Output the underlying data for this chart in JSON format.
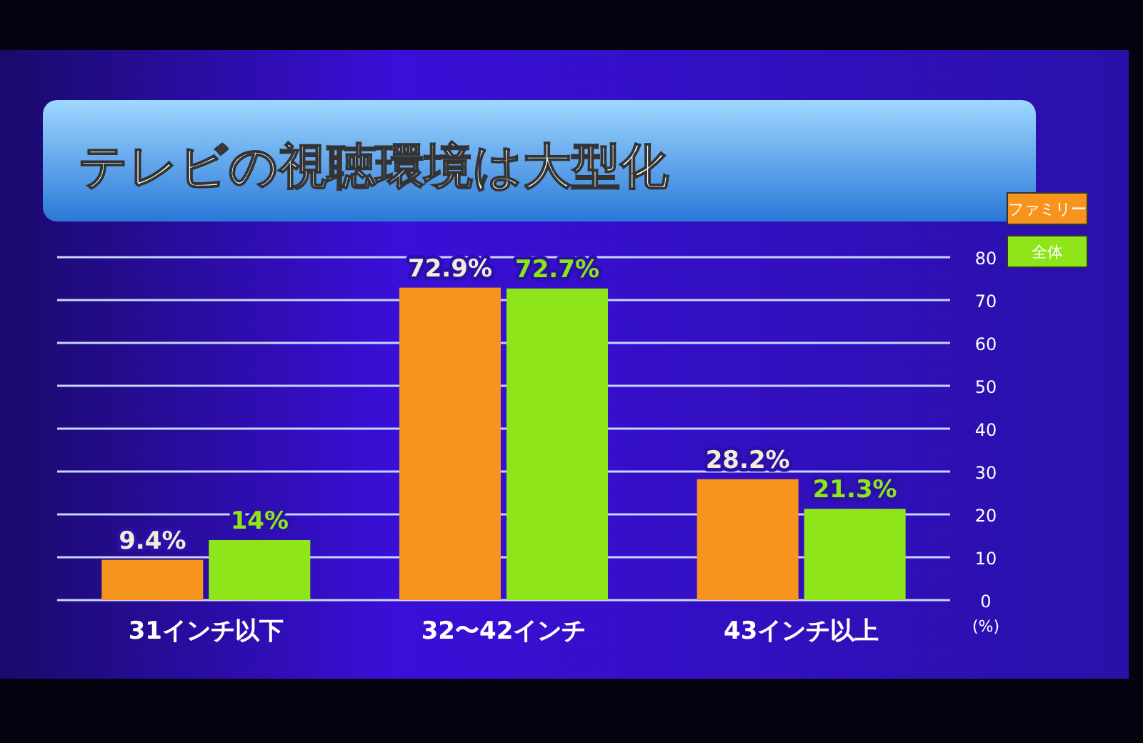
{
  "chart_data": {
    "type": "bar",
    "title": "テレビの視聴環境は大型化",
    "categories": [
      "31インチ以下",
      "32〜42インチ",
      "43インチ以上"
    ],
    "series": [
      {
        "name": "ファミリー",
        "color": "#f7941d",
        "values": [
          9.4,
          72.9,
          28.2
        ],
        "value_labels": [
          "9.4%",
          "72.9%",
          "28.2%"
        ]
      },
      {
        "name": "全体",
        "color": "#8ee51a",
        "values": [
          14,
          72.7,
          21.3
        ],
        "value_labels": [
          "14%",
          "72.7%",
          "21.3%"
        ]
      }
    ],
    "ylabel": "(%)",
    "ylim": [
      0,
      80
    ],
    "yticks": [
      0,
      10,
      20,
      30,
      40,
      50,
      60,
      70,
      80
    ],
    "grid": "y",
    "legend": "top right"
  }
}
